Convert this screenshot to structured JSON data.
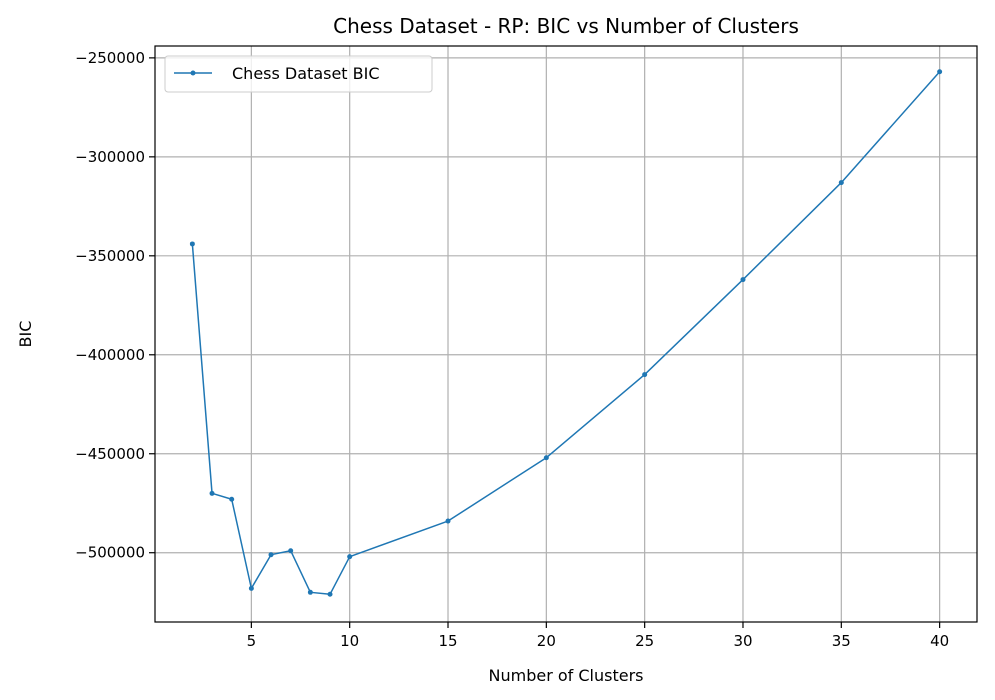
{
  "chart_data": {
    "type": "line",
    "title": "Chess Dataset - RP: BIC vs Number of Clusters",
    "xlabel": "Number of Clusters",
    "ylabel": "BIC",
    "xlim": [
      0.1,
      41.9
    ],
    "ylim": [
      -535000,
      -244000
    ],
    "xticks": [
      5,
      10,
      15,
      20,
      25,
      30,
      35,
      40
    ],
    "yticks": [
      -500000,
      -450000,
      -400000,
      -350000,
      -300000,
      -250000
    ],
    "ytick_labels": [
      "−500000",
      "−450000",
      "−400000",
      "−350000",
      "−300000",
      "−250000"
    ],
    "grid": true,
    "legend_position": "top-left",
    "series": [
      {
        "name": "Chess Dataset BIC",
        "color": "#1f77b4",
        "marker": "circle",
        "x": [
          2,
          3,
          4,
          5,
          6,
          7,
          8,
          9,
          10,
          15,
          20,
          25,
          30,
          35,
          40
        ],
        "y": [
          -344000,
          -470000,
          -473000,
          -518000,
          -501000,
          -499000,
          -520000,
          -521000,
          -502000,
          -484000,
          -452000,
          -410000,
          -362000,
          -313000,
          -257000
        ]
      }
    ]
  }
}
